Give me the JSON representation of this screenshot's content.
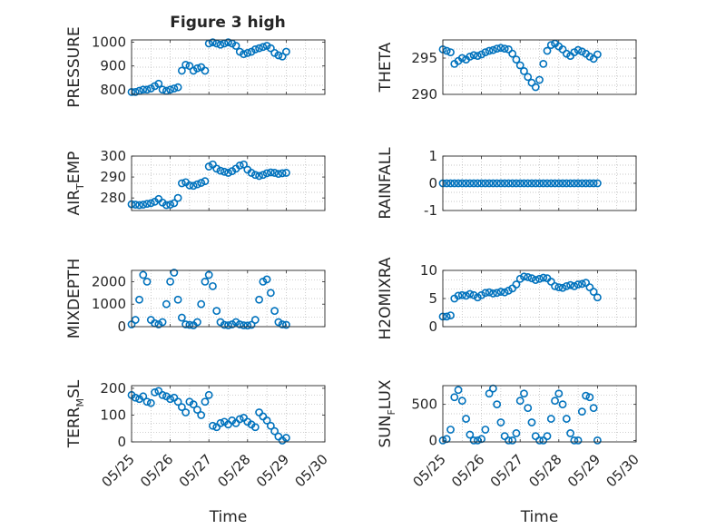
{
  "figure": {
    "title": "Figure 3 high",
    "marker_color": "#0072BD",
    "grid": "dotted",
    "box": true
  },
  "chart_data": [
    {
      "id": "pressure",
      "type": "scatter",
      "column": "left",
      "row": 1,
      "title": "Figure 3 high",
      "ylabel": "PRESSURE",
      "ylim": [
        780,
        1010
      ],
      "yticks": [
        800,
        900,
        1000
      ],
      "xlim": [
        0,
        5
      ],
      "xlabel": "",
      "x": [
        0.0,
        0.1,
        0.2,
        0.3,
        0.4,
        0.5,
        0.6,
        0.7,
        0.8,
        0.9,
        1.0,
        1.1,
        1.2,
        1.3,
        1.4,
        1.5,
        1.6,
        1.7,
        1.8,
        1.9,
        2.0,
        2.1,
        2.2,
        2.3,
        2.4,
        2.5,
        2.6,
        2.7,
        2.8,
        2.9,
        3.0,
        3.1,
        3.2,
        3.3,
        3.4,
        3.5,
        3.6,
        3.7,
        3.8,
        3.9,
        4.0
      ],
      "y": [
        790,
        790,
        795,
        800,
        800,
        805,
        815,
        825,
        800,
        795,
        800,
        805,
        810,
        880,
        905,
        900,
        880,
        890,
        895,
        880,
        995,
        1000,
        995,
        990,
        995,
        1000,
        995,
        985,
        960,
        950,
        955,
        960,
        970,
        975,
        980,
        985,
        975,
        955,
        945,
        940,
        960
      ]
    },
    {
      "id": "theta",
      "type": "scatter",
      "column": "right",
      "row": 1,
      "ylabel": "THETA",
      "ylim": [
        290,
        297.5
      ],
      "yticks": [
        290,
        295
      ],
      "xlim": [
        0,
        5
      ],
      "xlabel": "",
      "x": [
        0.0,
        0.1,
        0.2,
        0.3,
        0.4,
        0.5,
        0.6,
        0.7,
        0.8,
        0.9,
        1.0,
        1.1,
        1.2,
        1.3,
        1.4,
        1.5,
        1.6,
        1.7,
        1.8,
        1.9,
        2.0,
        2.1,
        2.2,
        2.3,
        2.4,
        2.5,
        2.6,
        2.7,
        2.8,
        2.9,
        3.0,
        3.1,
        3.2,
        3.3,
        3.4,
        3.5,
        3.6,
        3.7,
        3.8,
        3.9,
        4.0
      ],
      "y": [
        296.2,
        296.0,
        295.8,
        294.2,
        294.6,
        295.0,
        294.8,
        295.2,
        295.4,
        295.3,
        295.5,
        295.8,
        296.0,
        296.1,
        296.3,
        296.4,
        296.3,
        296.2,
        295.6,
        294.8,
        294.0,
        293.2,
        292.4,
        291.6,
        291.0,
        292.0,
        294.2,
        296.0,
        296.8,
        297.0,
        296.6,
        296.2,
        295.6,
        295.3,
        295.8,
        296.1,
        295.9,
        295.6,
        295.2,
        294.9,
        295.5
      ]
    },
    {
      "id": "air_temp",
      "type": "scatter",
      "column": "left",
      "row": 2,
      "ylabel_main": "AIR",
      "ylabel_sub": "T",
      "ylabel_rest": "EMP",
      "ylim": [
        274,
        300
      ],
      "yticks": [
        280,
        290,
        300
      ],
      "xlim": [
        0,
        5
      ],
      "xlabel": "",
      "x": [
        0.0,
        0.1,
        0.2,
        0.3,
        0.4,
        0.5,
        0.6,
        0.7,
        0.8,
        0.9,
        1.0,
        1.1,
        1.2,
        1.3,
        1.4,
        1.5,
        1.6,
        1.7,
        1.8,
        1.9,
        2.0,
        2.1,
        2.2,
        2.3,
        2.4,
        2.5,
        2.6,
        2.7,
        2.8,
        2.9,
        3.0,
        3.1,
        3.2,
        3.3,
        3.4,
        3.5,
        3.6,
        3.7,
        3.8,
        3.9,
        4.0
      ],
      "y": [
        277,
        276.8,
        276.6,
        276.8,
        277.2,
        277.5,
        278.2,
        279.5,
        277.8,
        276.6,
        276.8,
        277.5,
        280,
        287,
        287.5,
        286,
        285.8,
        286.5,
        287.2,
        288,
        295,
        296,
        294,
        293,
        292.5,
        292,
        292.8,
        294,
        295.5,
        296,
        293.5,
        292,
        291,
        290.5,
        291,
        291.8,
        292.2,
        292,
        291.5,
        291.8,
        292
      ]
    },
    {
      "id": "rainfall",
      "type": "scatter",
      "column": "right",
      "row": 2,
      "ylabel": "RAINFALL",
      "ylim": [
        -1,
        1
      ],
      "yticks": [
        -1,
        0,
        1
      ],
      "xlim": [
        0,
        5
      ],
      "xlabel": "",
      "x": [
        0.0,
        0.1,
        0.2,
        0.3,
        0.4,
        0.5,
        0.6,
        0.7,
        0.8,
        0.9,
        1.0,
        1.1,
        1.2,
        1.3,
        1.4,
        1.5,
        1.6,
        1.7,
        1.8,
        1.9,
        2.0,
        2.1,
        2.2,
        2.3,
        2.4,
        2.5,
        2.6,
        2.7,
        2.8,
        2.9,
        3.0,
        3.1,
        3.2,
        3.3,
        3.4,
        3.5,
        3.6,
        3.7,
        3.8,
        3.9,
        4.0
      ],
      "y": [
        0,
        0,
        0,
        0,
        0,
        0,
        0,
        0,
        0,
        0,
        0,
        0,
        0,
        0,
        0,
        0,
        0,
        0,
        0,
        0,
        0,
        0,
        0,
        0,
        0,
        0,
        0,
        0,
        0,
        0,
        0,
        0,
        0,
        0,
        0,
        0,
        0,
        0,
        0,
        0,
        0
      ]
    },
    {
      "id": "mixdepth",
      "type": "scatter",
      "column": "left",
      "row": 3,
      "ylabel": "MIXDEPTH",
      "ylim": [
        0,
        2500
      ],
      "yticks": [
        0,
        1000,
        2000
      ],
      "xlim": [
        0,
        5
      ],
      "xlabel": "",
      "x": [
        0.0,
        0.1,
        0.2,
        0.3,
        0.4,
        0.5,
        0.6,
        0.7,
        0.8,
        0.9,
        1.0,
        1.1,
        1.2,
        1.3,
        1.4,
        1.5,
        1.6,
        1.7,
        1.8,
        1.9,
        2.0,
        2.1,
        2.2,
        2.3,
        2.4,
        2.5,
        2.6,
        2.7,
        2.8,
        2.9,
        3.0,
        3.1,
        3.2,
        3.3,
        3.4,
        3.5,
        3.6,
        3.7,
        3.8,
        3.9,
        4.0
      ],
      "y": [
        100,
        300,
        1200,
        2300,
        2000,
        300,
        150,
        100,
        200,
        1000,
        2000,
        2400,
        1200,
        400,
        100,
        80,
        60,
        200,
        1000,
        2000,
        2300,
        1800,
        700,
        200,
        80,
        60,
        100,
        200,
        100,
        60,
        50,
        80,
        300,
        1200,
        2000,
        2100,
        1500,
        700,
        200,
        100,
        80
      ]
    },
    {
      "id": "h2omixra",
      "type": "scatter",
      "column": "right",
      "row": 3,
      "ylabel": "H2OMIXRA",
      "ylim": [
        0,
        10
      ],
      "yticks": [
        0,
        5,
        10
      ],
      "xlim": [
        0,
        5
      ],
      "xlabel": "",
      "x": [
        0.0,
        0.1,
        0.2,
        0.3,
        0.4,
        0.5,
        0.6,
        0.7,
        0.8,
        0.9,
        1.0,
        1.1,
        1.2,
        1.3,
        1.4,
        1.5,
        1.6,
        1.7,
        1.8,
        1.9,
        2.0,
        2.1,
        2.2,
        2.3,
        2.4,
        2.5,
        2.6,
        2.7,
        2.8,
        2.9,
        3.0,
        3.1,
        3.2,
        3.3,
        3.4,
        3.5,
        3.6,
        3.7,
        3.8,
        3.9,
        4.0
      ],
      "y": [
        1.8,
        1.8,
        2.0,
        5.0,
        5.5,
        5.6,
        5.5,
        5.8,
        5.6,
        5.2,
        5.6,
        6.0,
        6.1,
        5.9,
        6.0,
        6.2,
        6.1,
        6.4,
        6.8,
        7.5,
        8.5,
        8.9,
        8.8,
        8.6,
        8.3,
        8.5,
        8.7,
        8.6,
        8.0,
        7.2,
        7.0,
        6.9,
        7.2,
        7.4,
        7.2,
        7.5,
        7.6,
        7.8,
        7.0,
        6.2,
        5.2
      ]
    },
    {
      "id": "terr_msl",
      "type": "scatter",
      "column": "left",
      "row": 4,
      "ylabel_main": "TERR",
      "ylabel_sub": "M",
      "ylabel_rest": "SL",
      "ylim": [
        0,
        210
      ],
      "yticks": [
        0,
        100,
        200
      ],
      "xlim": [
        0,
        5
      ],
      "xlabel": "Time",
      "xticks": [
        "05/25",
        "05/26",
        "05/27",
        "05/28",
        "05/29",
        "05/30"
      ],
      "x": [
        0.0,
        0.1,
        0.2,
        0.3,
        0.4,
        0.5,
        0.6,
        0.7,
        0.8,
        0.9,
        1.0,
        1.1,
        1.2,
        1.3,
        1.4,
        1.5,
        1.6,
        1.7,
        1.8,
        1.9,
        2.0,
        2.1,
        2.2,
        2.3,
        2.4,
        2.5,
        2.6,
        2.7,
        2.8,
        2.9,
        3.0,
        3.1,
        3.2,
        3.3,
        3.4,
        3.5,
        3.6,
        3.7,
        3.8,
        3.9,
        4.0
      ],
      "y": [
        175,
        165,
        160,
        170,
        150,
        145,
        185,
        190,
        175,
        170,
        160,
        165,
        150,
        130,
        110,
        150,
        140,
        120,
        100,
        150,
        175,
        60,
        55,
        70,
        75,
        65,
        80,
        70,
        85,
        90,
        75,
        65,
        55,
        110,
        95,
        80,
        60,
        40,
        20,
        5,
        15
      ]
    },
    {
      "id": "sun_flux",
      "type": "scatter",
      "column": "right",
      "row": 4,
      "ylabel_main": "SUN",
      "ylabel_sub": "F",
      "ylabel_rest": "LUX",
      "ylim": [
        -20,
        760
      ],
      "yticks": [
        0,
        500
      ],
      "xlim": [
        0,
        5
      ],
      "xlabel": "Time",
      "xticks": [
        "05/25",
        "05/26",
        "05/27",
        "05/28",
        "05/29",
        "05/30"
      ],
      "x": [
        0.0,
        0.1,
        0.2,
        0.3,
        0.4,
        0.5,
        0.6,
        0.7,
        0.8,
        0.9,
        1.0,
        1.1,
        1.2,
        1.3,
        1.4,
        1.5,
        1.6,
        1.7,
        1.8,
        1.9,
        2.0,
        2.1,
        2.2,
        2.3,
        2.4,
        2.5,
        2.6,
        2.7,
        2.8,
        2.9,
        3.0,
        3.1,
        3.2,
        3.3,
        3.4,
        3.5,
        3.6,
        3.7,
        3.8,
        3.9,
        4.0
      ],
      "y": [
        0,
        20,
        150,
        600,
        700,
        550,
        300,
        80,
        0,
        0,
        20,
        150,
        650,
        720,
        500,
        250,
        60,
        0,
        0,
        100,
        550,
        650,
        450,
        250,
        60,
        0,
        0,
        60,
        300,
        550,
        650,
        500,
        300,
        100,
        0,
        0,
        400,
        620,
        600,
        450,
        0
      ]
    }
  ]
}
